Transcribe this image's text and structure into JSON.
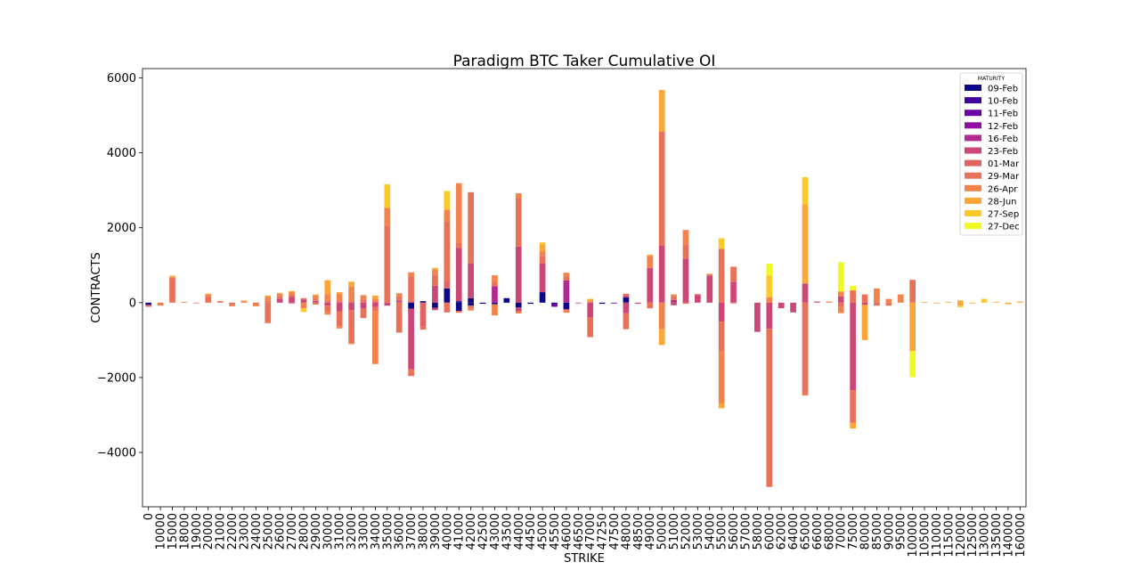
{
  "chart_data": {
    "type": "bar",
    "stacked": true,
    "title": "Paradigm BTC Taker Cumulative OI",
    "xlabel": "STRIKE",
    "ylabel": "CONTRACTS",
    "ylim": [
      -5450,
      6250
    ],
    "yticks": [
      -4000,
      -2000,
      0,
      2000,
      4000,
      6000
    ],
    "ytick_labels": [
      "−4000",
      "−2000",
      "0",
      "2000",
      "4000",
      "6000"
    ],
    "legend_title": "MATURITY",
    "legend_position": "top-right",
    "grid": false,
    "series_names": [
      "09-Feb",
      "10-Feb",
      "11-Feb",
      "12-Feb",
      "16-Feb",
      "23-Feb",
      "01-Mar",
      "29-Mar",
      "26-Apr",
      "28-Jun",
      "27-Sep",
      "27-Dec"
    ],
    "series_colors": [
      "#0d0887",
      "#41049d",
      "#6a00a8",
      "#8f0da4",
      "#b12a90",
      "#cc4778",
      "#e16462",
      "#e97158",
      "#f2844b",
      "#fca636",
      "#fbca2a",
      "#f0f921"
    ],
    "categories": [
      "0",
      "10000",
      "15000",
      "18000",
      "19000",
      "20000",
      "21000",
      "22000",
      "23000",
      "24000",
      "25000",
      "26000",
      "27000",
      "28000",
      "29000",
      "30000",
      "31000",
      "32000",
      "33000",
      "34000",
      "35000",
      "36000",
      "37000",
      "38000",
      "39000",
      "40000",
      "41000",
      "42000",
      "42500",
      "43000",
      "43500",
      "44000",
      "44500",
      "45000",
      "45500",
      "46000",
      "46500",
      "47000",
      "47250",
      "47500",
      "48000",
      "48500",
      "49000",
      "50000",
      "51000",
      "52000",
      "53000",
      "54000",
      "55000",
      "56000",
      "57000",
      "58000",
      "60000",
      "62000",
      "64000",
      "65000",
      "66000",
      "68000",
      "70000",
      "75000",
      "80000",
      "85000",
      "90000",
      "95000",
      "100000",
      "105000",
      "110000",
      "115000",
      "120000",
      "125000",
      "130000",
      "135000",
      "140000",
      "160000"
    ],
    "values": {
      "0": [
        [
          0,
          -60
        ],
        [
          6,
          -50
        ]
      ],
      "10000": [
        [
          7,
          -40
        ],
        [
          8,
          -40
        ]
      ],
      "15000": [
        [
          7,
          650
        ],
        [
          8,
          30
        ],
        [
          9,
          40
        ]
      ],
      "18000": [
        [
          8,
          20
        ]
      ],
      "19000": [
        [
          8,
          -20
        ]
      ],
      "20000": [
        [
          7,
          180
        ],
        [
          8,
          40
        ],
        [
          9,
          20
        ]
      ],
      "21000": [
        [
          7,
          40
        ]
      ],
      "22000": [
        [
          7,
          -60
        ],
        [
          8,
          -40
        ]
      ],
      "23000": [
        [
          8,
          40
        ],
        [
          9,
          20
        ]
      ],
      "24000": [
        [
          7,
          -60
        ],
        [
          8,
          -40
        ]
      ],
      "25000": [
        [
          7,
          50
        ],
        [
          8,
          100
        ],
        [
          9,
          40
        ],
        [
          7,
          -520
        ],
        [
          8,
          -30
        ]
      ],
      "26000": [
        [
          5,
          100
        ],
        [
          7,
          80
        ],
        [
          8,
          60
        ],
        [
          9,
          20
        ]
      ],
      "27000": [
        [
          5,
          150
        ],
        [
          7,
          60
        ],
        [
          8,
          80
        ],
        [
          9,
          20
        ],
        [
          5,
          -20
        ]
      ],
      "28000": [
        [
          5,
          80
        ],
        [
          7,
          40
        ],
        [
          8,
          -150
        ],
        [
          10,
          -100
        ]
      ],
      "29000": [
        [
          5,
          50
        ],
        [
          7,
          40
        ],
        [
          8,
          100
        ],
        [
          9,
          30
        ],
        [
          7,
          -50
        ]
      ],
      "30000": [
        [
          6,
          30
        ],
        [
          8,
          200
        ],
        [
          9,
          370
        ],
        [
          5,
          -80
        ],
        [
          7,
          -160
        ],
        [
          8,
          -80
        ]
      ],
      "31000": [
        [
          6,
          40
        ],
        [
          8,
          200
        ],
        [
          9,
          40
        ],
        [
          5,
          -230
        ],
        [
          7,
          -400
        ],
        [
          8,
          -60
        ]
      ],
      "32000": [
        [
          6,
          30
        ],
        [
          8,
          400
        ],
        [
          9,
          130
        ],
        [
          5,
          -200
        ],
        [
          7,
          -880
        ],
        [
          8,
          -30
        ]
      ],
      "33000": [
        [
          7,
          80
        ],
        [
          8,
          120
        ],
        [
          5,
          -150
        ],
        [
          7,
          -260
        ]
      ],
      "34000": [
        [
          6,
          40
        ],
        [
          8,
          70
        ],
        [
          9,
          80
        ],
        [
          5,
          -120
        ],
        [
          7,
          -100
        ],
        [
          8,
          -1420
        ]
      ],
      "35000": [
        [
          7,
          2050
        ],
        [
          8,
          480
        ],
        [
          10,
          630
        ],
        [
          5,
          -80
        ]
      ],
      "36000": [
        [
          5,
          60
        ],
        [
          7,
          100
        ],
        [
          8,
          90
        ],
        [
          7,
          -800
        ]
      ],
      "37000": [
        [
          6,
          60
        ],
        [
          7,
          650
        ],
        [
          8,
          100
        ],
        [
          0,
          -160
        ],
        [
          5,
          -1620
        ],
        [
          7,
          -180
        ]
      ],
      "38000": [
        [
          0,
          40
        ],
        [
          6,
          -640
        ],
        [
          7,
          -80
        ]
      ],
      "39000": [
        [
          5,
          450
        ],
        [
          7,
          300
        ],
        [
          8,
          130
        ],
        [
          9,
          50
        ],
        [
          0,
          -140
        ],
        [
          5,
          -60
        ]
      ],
      "40000": [
        [
          0,
          380
        ],
        [
          6,
          200
        ],
        [
          7,
          1600
        ],
        [
          8,
          300
        ],
        [
          10,
          500
        ],
        [
          7,
          -260
        ]
      ],
      "41000": [
        [
          0,
          40
        ],
        [
          5,
          1420
        ],
        [
          7,
          130
        ],
        [
          8,
          1600
        ],
        [
          0,
          -220
        ],
        [
          7,
          -50
        ]
      ],
      "42000": [
        [
          0,
          120
        ],
        [
          5,
          930
        ],
        [
          7,
          1900
        ],
        [
          0,
          -80
        ],
        [
          7,
          -70
        ],
        [
          8,
          -60
        ]
      ],
      "42500": [
        [
          0,
          -30
        ]
      ],
      "43000": [
        [
          4,
          440
        ],
        [
          7,
          90
        ],
        [
          8,
          200
        ],
        [
          0,
          -40
        ],
        [
          8,
          -300
        ]
      ],
      "43500": [
        [
          0,
          120
        ]
      ],
      "44000": [
        [
          5,
          1500
        ],
        [
          7,
          1300
        ],
        [
          8,
          120
        ],
        [
          0,
          -130
        ],
        [
          5,
          -100
        ],
        [
          8,
          -60
        ]
      ],
      "44500": [
        [
          0,
          -30
        ]
      ],
      "45000": [
        [
          0,
          280
        ],
        [
          5,
          770
        ],
        [
          7,
          200
        ],
        [
          8,
          120
        ],
        [
          9,
          190
        ],
        [
          10,
          50
        ]
      ],
      "45500": [
        [
          0,
          -30
        ],
        [
          2,
          -80
        ]
      ],
      "46000": [
        [
          4,
          590
        ],
        [
          7,
          110
        ],
        [
          8,
          100
        ],
        [
          0,
          -170
        ],
        [
          5,
          -30
        ],
        [
          8,
          -70
        ]
      ],
      "46500": [
        [
          5,
          -20
        ]
      ],
      "47000": [
        [
          8,
          40
        ],
        [
          9,
          60
        ],
        [
          5,
          -400
        ],
        [
          7,
          -520
        ]
      ],
      "47250": [
        [
          0,
          -30
        ]
      ],
      "47500": [
        [
          1,
          -20
        ]
      ],
      "48000": [
        [
          0,
          140
        ],
        [
          5,
          50
        ],
        [
          7,
          50
        ],
        [
          5,
          -280
        ],
        [
          7,
          -430
        ]
      ],
      "48500": [
        [
          5,
          -30
        ]
      ],
      "49000": [
        [
          5,
          930
        ],
        [
          8,
          320
        ],
        [
          9,
          30
        ],
        [
          7,
          -150
        ]
      ],
      "50000": [
        [
          5,
          1520
        ],
        [
          7,
          3040
        ],
        [
          9,
          1120
        ],
        [
          8,
          -710
        ],
        [
          9,
          -420
        ]
      ],
      "51000": [
        [
          4,
          70
        ],
        [
          7,
          100
        ],
        [
          8,
          50
        ],
        [
          5,
          -70
        ]
      ],
      "52000": [
        [
          5,
          1170
        ],
        [
          7,
          380
        ],
        [
          8,
          390
        ],
        [
          7,
          -30
        ]
      ],
      "53000": [
        [
          5,
          200
        ],
        [
          7,
          30
        ]
      ],
      "54000": [
        [
          5,
          720
        ],
        [
          8,
          50
        ]
      ],
      "55000": [
        [
          7,
          1440
        ],
        [
          10,
          280
        ],
        [
          5,
          -510
        ],
        [
          7,
          -780
        ],
        [
          8,
          -1400
        ],
        [
          9,
          -130
        ]
      ],
      "56000": [
        [
          5,
          560
        ],
        [
          7,
          400
        ],
        [
          7,
          -20
        ]
      ],
      "57000": [],
      "58000": [
        [
          5,
          -780
        ]
      ],
      "60000": [
        [
          8,
          140
        ],
        [
          10,
          580
        ],
        [
          11,
          320
        ],
        [
          5,
          -700
        ],
        [
          7,
          -4220
        ]
      ],
      "62000": [
        [
          5,
          -150
        ]
      ],
      "64000": [
        [
          5,
          -260
        ]
      ],
      "65000": [
        [
          5,
          510
        ],
        [
          9,
          2120
        ],
        [
          10,
          720
        ],
        [
          7,
          -2440
        ],
        [
          8,
          -40
        ]
      ],
      "66000": [
        [
          5,
          30
        ]
      ],
      "68000": [
        [
          8,
          30
        ]
      ],
      "70000": [
        [
          5,
          170
        ],
        [
          8,
          130
        ],
        [
          11,
          780
        ],
        [
          7,
          -100
        ],
        [
          8,
          -180
        ]
      ],
      "75000": [
        [
          7,
          330
        ],
        [
          11,
          120
        ],
        [
          5,
          -2340
        ],
        [
          7,
          -870
        ],
        [
          9,
          -150
        ]
      ],
      "80000": [
        [
          7,
          220
        ],
        [
          5,
          -60
        ],
        [
          9,
          -940
        ]
      ],
      "85000": [
        [
          7,
          30
        ],
        [
          8,
          350
        ],
        [
          7,
          -80
        ]
      ],
      "90000": [
        [
          8,
          100
        ],
        [
          7,
          -80
        ]
      ],
      "95000": [
        [
          8,
          220
        ]
      ],
      "100000": [
        [
          7,
          610
        ],
        [
          9,
          -1290
        ],
        [
          11,
          -700
        ]
      ],
      "105000": [
        [
          9,
          20
        ]
      ],
      "110000": [
        [
          9,
          -20
        ]
      ],
      "115000": [
        [
          9,
          20
        ]
      ],
      "120000": [
        [
          9,
          60
        ],
        [
          9,
          -80
        ],
        [
          10,
          -40
        ]
      ],
      "125000": [
        [
          9,
          -20
        ]
      ],
      "130000": [
        [
          10,
          100
        ]
      ],
      "135000": [
        [
          9,
          20
        ]
      ],
      "140000": [
        [
          9,
          -40
        ]
      ],
      "160000": [
        [
          9,
          30
        ]
      ]
    }
  }
}
